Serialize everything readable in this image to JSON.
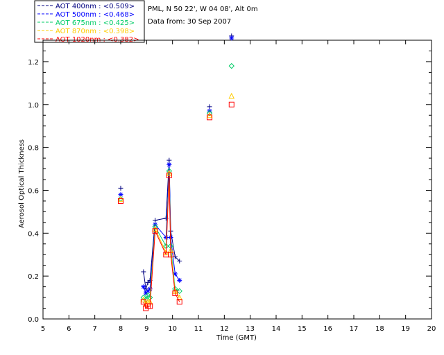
{
  "header": {
    "site": "PML, N 50 22', W 04 08', Alt 0m",
    "date": "Data from: 30 Sep 2007"
  },
  "chart_data": {
    "type": "line",
    "title": "",
    "xlabel": "Time (GMT)",
    "ylabel": "Aerosol Optical Thickness",
    "xlim": [
      5,
      20
    ],
    "ylim": [
      0,
      1.3
    ],
    "xticks": [
      "5",
      "6",
      "7",
      "8",
      "9",
      "10",
      "11",
      "12",
      "13",
      "14",
      "15",
      "16",
      "17",
      "18",
      "19",
      "20"
    ],
    "yticks": [
      "0.0",
      "0.2",
      "0.4",
      "0.6",
      "0.8",
      "1.0",
      "1.2"
    ],
    "legend_position": "top-left-outside",
    "series": [
      {
        "name": "AOT  400nm : <0.509>",
        "color": "#000080",
        "marker": "plus",
        "x": [
          8.0,
          8.88,
          8.97,
          9.05,
          9.13,
          9.33,
          9.75,
          9.87,
          9.93,
          10.1,
          10.27,
          11.43,
          12.28
        ],
        "y": [
          0.61,
          0.22,
          0.14,
          0.17,
          0.18,
          0.46,
          0.47,
          0.74,
          0.41,
          0.29,
          0.27,
          0.99,
          1.34
        ]
      },
      {
        "name": "AOT  500nm : <0.468>",
        "color": "#0000ff",
        "marker": "asterisk",
        "x": [
          8.0,
          8.88,
          8.97,
          9.05,
          9.13,
          9.33,
          9.75,
          9.87,
          9.93,
          10.1,
          10.27,
          11.43,
          12.28
        ],
        "y": [
          0.58,
          0.15,
          0.12,
          0.13,
          0.14,
          0.44,
          0.38,
          0.72,
          0.38,
          0.21,
          0.18,
          0.97,
          1.31
        ]
      },
      {
        "name": "AOT  675nm : <0.425>",
        "color": "#00cc66",
        "marker": "diamond",
        "x": [
          8.0,
          8.88,
          8.97,
          9.05,
          9.13,
          9.33,
          9.75,
          9.87,
          9.93,
          10.1,
          10.27,
          11.43,
          12.28
        ],
        "y": [
          0.56,
          0.1,
          0.09,
          0.11,
          0.1,
          0.43,
          0.34,
          0.69,
          0.34,
          0.14,
          0.13,
          0.96,
          1.18
        ]
      },
      {
        "name": "AOT  870nm : <0.398>",
        "color": "#ffcc00",
        "marker": "triangle",
        "x": [
          8.0,
          8.88,
          8.97,
          9.05,
          9.13,
          9.33,
          9.75,
          9.87,
          9.93,
          10.1,
          10.27,
          11.43,
          12.28
        ],
        "y": [
          0.56,
          0.09,
          0.07,
          0.08,
          0.08,
          0.42,
          0.31,
          0.68,
          0.32,
          0.13,
          0.1,
          0.95,
          1.04
        ]
      },
      {
        "name": "AOT 1020nm : <0.382>",
        "color": "#ff0000",
        "marker": "square",
        "x": [
          8.0,
          8.88,
          8.97,
          9.05,
          9.13,
          9.33,
          9.75,
          9.87,
          9.93,
          10.1,
          10.27,
          11.43,
          12.28
        ],
        "y": [
          0.55,
          0.08,
          0.05,
          0.06,
          0.06,
          0.41,
          0.3,
          0.67,
          0.3,
          0.12,
          0.08,
          0.94,
          1.0
        ]
      }
    ]
  }
}
